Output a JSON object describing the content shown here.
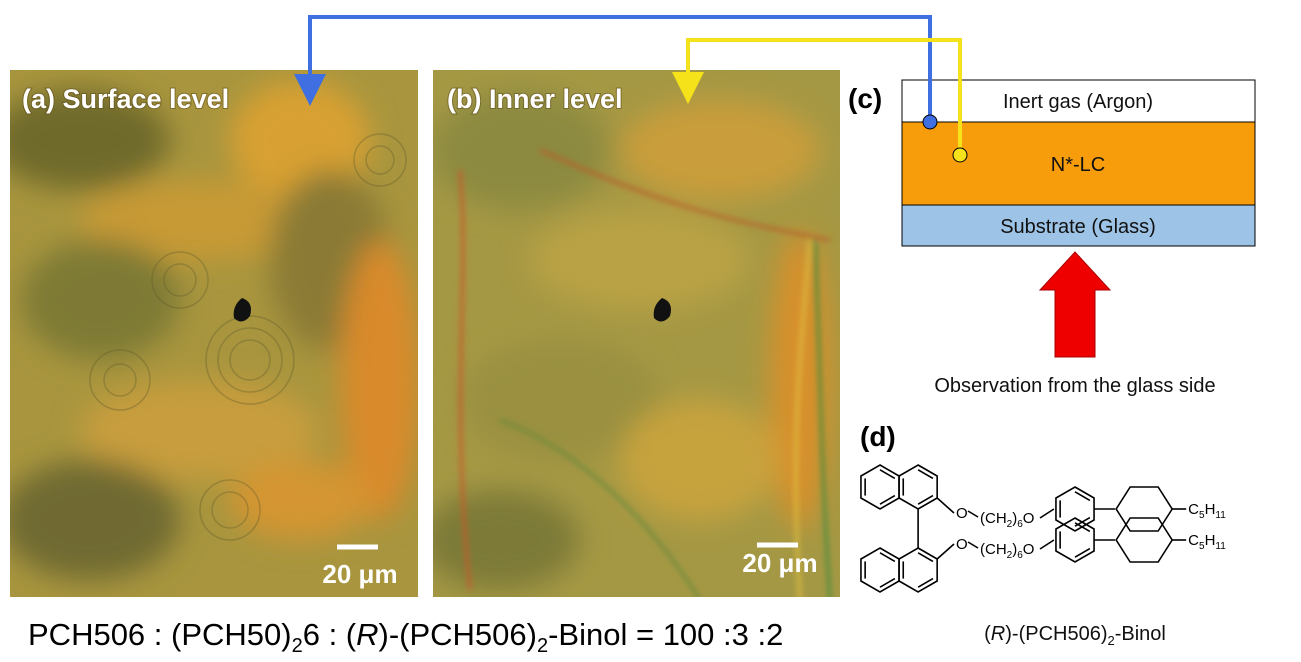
{
  "panels": [
    {
      "label": "(a) Surface level",
      "scale": "20 μm"
    },
    {
      "label": "(b) Inner level",
      "scale": "20 μm"
    }
  ],
  "cell": {
    "label": "(c)",
    "layers": [
      "Inert gas (Argon)",
      "N*-LC",
      "Substrate (Glass)"
    ],
    "caption": "Observation from the glass side"
  },
  "molecule": {
    "label": "(d)",
    "chains": [
      {
        "oxygen": "O",
        "linker": [
          "(CH",
          "2",
          ")",
          "6",
          "O"
        ],
        "tail": [
          "C",
          "5",
          "H",
          "11"
        ]
      },
      {
        "oxygen": "O",
        "linker": [
          "(CH",
          "2",
          ")",
          "6",
          "O"
        ],
        "tail": [
          "C",
          "5",
          "H",
          "11"
        ]
      }
    ],
    "caption": [
      "(",
      "R",
      ")-(PCH506)",
      "2",
      "-Binol"
    ]
  },
  "formula": [
    "PCH506 : (PCH50)",
    "2",
    "6 : (",
    "R",
    ")-(PCH506)",
    "2",
    "-Binol = 100 :3 :2"
  ]
}
